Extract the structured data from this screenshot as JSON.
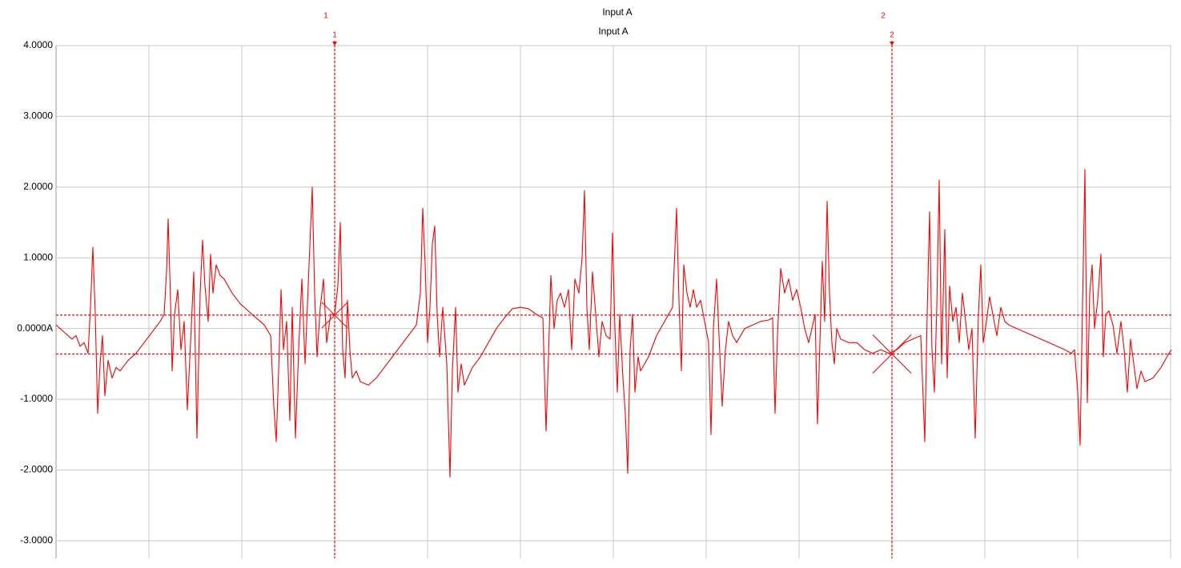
{
  "chart_data": {
    "type": "line",
    "title": "Input A",
    "subtitle": "Input A",
    "xlim": [
      0,
      1393
    ],
    "xticks": [
      0,
      116,
      232,
      348,
      464,
      580,
      696,
      812,
      928,
      1044,
      1160,
      1276,
      1392
    ],
    "ylim": [
      -3.25,
      4
    ],
    "yticks": [
      {
        "value": 4,
        "label": "4.0000"
      },
      {
        "value": 3,
        "label": "3.0000"
      },
      {
        "value": 2,
        "label": "2.0000"
      },
      {
        "value": 1,
        "label": "1.0000"
      },
      {
        "value": 0,
        "label": "0.0000A"
      },
      {
        "value": -1,
        "label": "-1.0000"
      },
      {
        "value": -2,
        "label": "-2.0000"
      },
      {
        "value": -3,
        "label": "-3.0000"
      }
    ],
    "grid": true,
    "x": [
      0,
      10,
      20,
      25,
      30,
      35,
      40,
      43,
      46,
      49,
      52,
      55,
      58,
      61,
      65,
      70,
      75,
      80,
      90,
      100,
      110,
      120,
      130,
      135,
      138,
      140,
      143,
      145,
      148,
      152,
      156,
      160,
      164,
      168,
      172,
      176,
      180,
      183,
      186,
      190,
      193,
      196,
      200,
      205,
      210,
      220,
      230,
      240,
      250,
      260,
      268,
      272,
      275,
      278,
      281,
      284,
      288,
      292,
      295,
      299,
      303,
      307,
      311,
      316,
      320,
      323,
      326,
      330,
      334,
      338,
      343,
      348,
      352,
      355,
      358,
      361,
      364,
      367,
      370,
      375,
      380,
      390,
      400,
      410,
      420,
      430,
      440,
      450,
      455,
      458,
      461,
      464,
      467,
      470,
      473,
      476,
      479,
      483,
      488,
      492,
      495,
      499,
      502,
      506,
      510,
      520,
      530,
      540,
      550,
      560,
      570,
      580,
      590,
      600,
      608,
      612,
      615,
      618,
      622,
      626,
      630,
      635,
      640,
      644,
      648,
      653,
      657,
      660,
      663,
      666,
      670,
      674,
      678,
      682,
      687,
      692,
      695,
      698,
      701,
      704,
      708,
      711,
      714,
      717,
      720,
      723,
      727,
      730,
      740,
      750,
      760,
      770,
      775,
      778,
      781,
      784,
      788,
      792,
      796,
      800,
      805,
      810,
      815,
      818,
      821,
      825,
      828,
      832,
      836,
      840,
      845,
      850,
      860,
      870,
      880,
      890,
      895,
      898,
      901,
      905,
      910,
      915,
      920,
      925,
      930,
      935,
      940,
      945,
      948,
      951,
      954,
      957,
      960,
      963,
      966,
      969,
      972,
      975,
      980,
      990,
      1000,
      1010,
      1020,
      1030,
      1040,
      1050,
      1060,
      1070,
      1080,
      1085,
      1088,
      1091,
      1094,
      1097,
      1100,
      1103,
      1106,
      1110,
      1113,
      1116,
      1120,
      1124,
      1128,
      1132,
      1136,
      1140,
      1144,
      1148,
      1152,
      1155,
      1158,
      1162,
      1166,
      1170,
      1175,
      1180,
      1185,
      1190,
      1200,
      1210,
      1220,
      1230,
      1240,
      1250,
      1260,
      1268,
      1272,
      1276,
      1279,
      1282,
      1285,
      1288,
      1291,
      1294,
      1297,
      1301,
      1305,
      1308,
      1311,
      1315,
      1320,
      1325,
      1330,
      1334,
      1338,
      1342,
      1346,
      1350,
      1355,
      1360,
      1370,
      1380,
      1390,
      1393
    ],
    "series": [
      {
        "color": "#ff0000",
        "values": [
          0.05,
          -0.05,
          -0.15,
          -0.1,
          -0.25,
          -0.2,
          -0.35,
          0.3,
          1.15,
          0.2,
          -1.2,
          -0.5,
          -0.1,
          -0.95,
          -0.45,
          -0.7,
          -0.55,
          -0.6,
          -0.45,
          -0.35,
          -0.2,
          -0.05,
          0.1,
          0.2,
          0.8,
          1.55,
          0.4,
          -0.6,
          0.2,
          0.55,
          -0.3,
          0.1,
          -1.15,
          -0.2,
          0.8,
          -1.55,
          0.5,
          1.25,
          0.6,
          0.1,
          1.05,
          0.5,
          0.9,
          0.75,
          0.7,
          0.5,
          0.35,
          0.25,
          0.15,
          0.05,
          -0.1,
          -1.1,
          -1.6,
          -0.6,
          0.55,
          -0.3,
          0.1,
          -1.3,
          0.3,
          -1.55,
          -0.3,
          0.7,
          -0.5,
          0.9,
          2.0,
          0.5,
          -0.4,
          0.3,
          0.7,
          -0.2,
          0.2,
          0.2,
          0.6,
          1.5,
          -0.3,
          -0.7,
          0.4,
          -0.3,
          -0.7,
          -0.6,
          -0.75,
          -0.8,
          -0.7,
          -0.55,
          -0.4,
          -0.25,
          -0.1,
          0.05,
          0.5,
          1.7,
          0.9,
          -0.2,
          0.3,
          1.2,
          1.45,
          0.2,
          -0.4,
          0.3,
          -0.5,
          -2.1,
          -0.6,
          0.3,
          -0.9,
          -0.5,
          -0.8,
          -0.55,
          -0.4,
          -0.2,
          0.0,
          0.15,
          0.28,
          0.3,
          0.28,
          0.2,
          0.15,
          -1.45,
          -0.4,
          0.75,
          0.0,
          0.4,
          0.5,
          0.3,
          0.55,
          -0.3,
          0.7,
          0.5,
          1.0,
          1.95,
          0.3,
          -0.3,
          0.8,
          0.2,
          -0.4,
          0.1,
          -0.1,
          -0.15,
          1.35,
          0.0,
          -0.9,
          0.2,
          -0.7,
          -1.2,
          -2.05,
          -0.3,
          0.2,
          -0.9,
          -0.4,
          -0.6,
          -0.4,
          -0.1,
          0.1,
          0.3,
          1.7,
          0.4,
          -0.6,
          0.9,
          0.5,
          0.3,
          0.55,
          0.3,
          0.4,
          0.1,
          -0.2,
          -1.5,
          0.0,
          0.7,
          -0.1,
          -1.1,
          -0.3,
          0.1,
          -0.1,
          -0.2,
          0.0,
          0.05,
          0.1,
          0.12,
          0.15,
          -1.2,
          -0.1,
          0.85,
          0.5,
          0.7,
          0.4,
          0.55,
          0.3,
          0.0,
          -0.2,
          0.05,
          0.2,
          -1.35,
          -0.2,
          0.95,
          0.1,
          1.8,
          0.5,
          -0.2,
          -0.5,
          0.0,
          -0.15,
          -0.2,
          -0.2,
          -0.3,
          -0.35,
          -0.3,
          -0.35,
          -0.3,
          -0.2,
          -0.15,
          -0.1,
          -1.6,
          0.2,
          1.65,
          -0.3,
          -0.9,
          0.3,
          2.1,
          -0.5,
          1.4,
          -0.7,
          0.6,
          0.1,
          0.3,
          -0.2,
          0.5,
          0.1,
          -0.3,
          0.0,
          -1.55,
          0.2,
          0.9,
          -0.2,
          0.1,
          0.45,
          0.2,
          -0.1,
          0.3,
          0.1,
          0.05,
          0.0,
          -0.05,
          -0.1,
          -0.15,
          -0.2,
          -0.25,
          -0.3,
          -0.35,
          -0.3,
          -0.9,
          -1.65,
          0.3,
          2.25,
          -1.05,
          0.5,
          0.9,
          0.0,
          0.4,
          1.05,
          -0.4,
          0.2,
          0.25,
          0.05,
          -0.35,
          0.1,
          -0.3,
          -0.9,
          -0.15,
          -0.5,
          -0.85,
          -0.6,
          -0.75,
          -0.7,
          -0.55,
          -0.35,
          -0.3
        ]
      }
    ],
    "cursors": [
      {
        "label": "1",
        "x": 348,
        "y": 0.19,
        "color": "#ff0000"
      },
      {
        "label": "2",
        "x": 1044,
        "y": -0.36,
        "color": "#ff0000"
      }
    ]
  }
}
